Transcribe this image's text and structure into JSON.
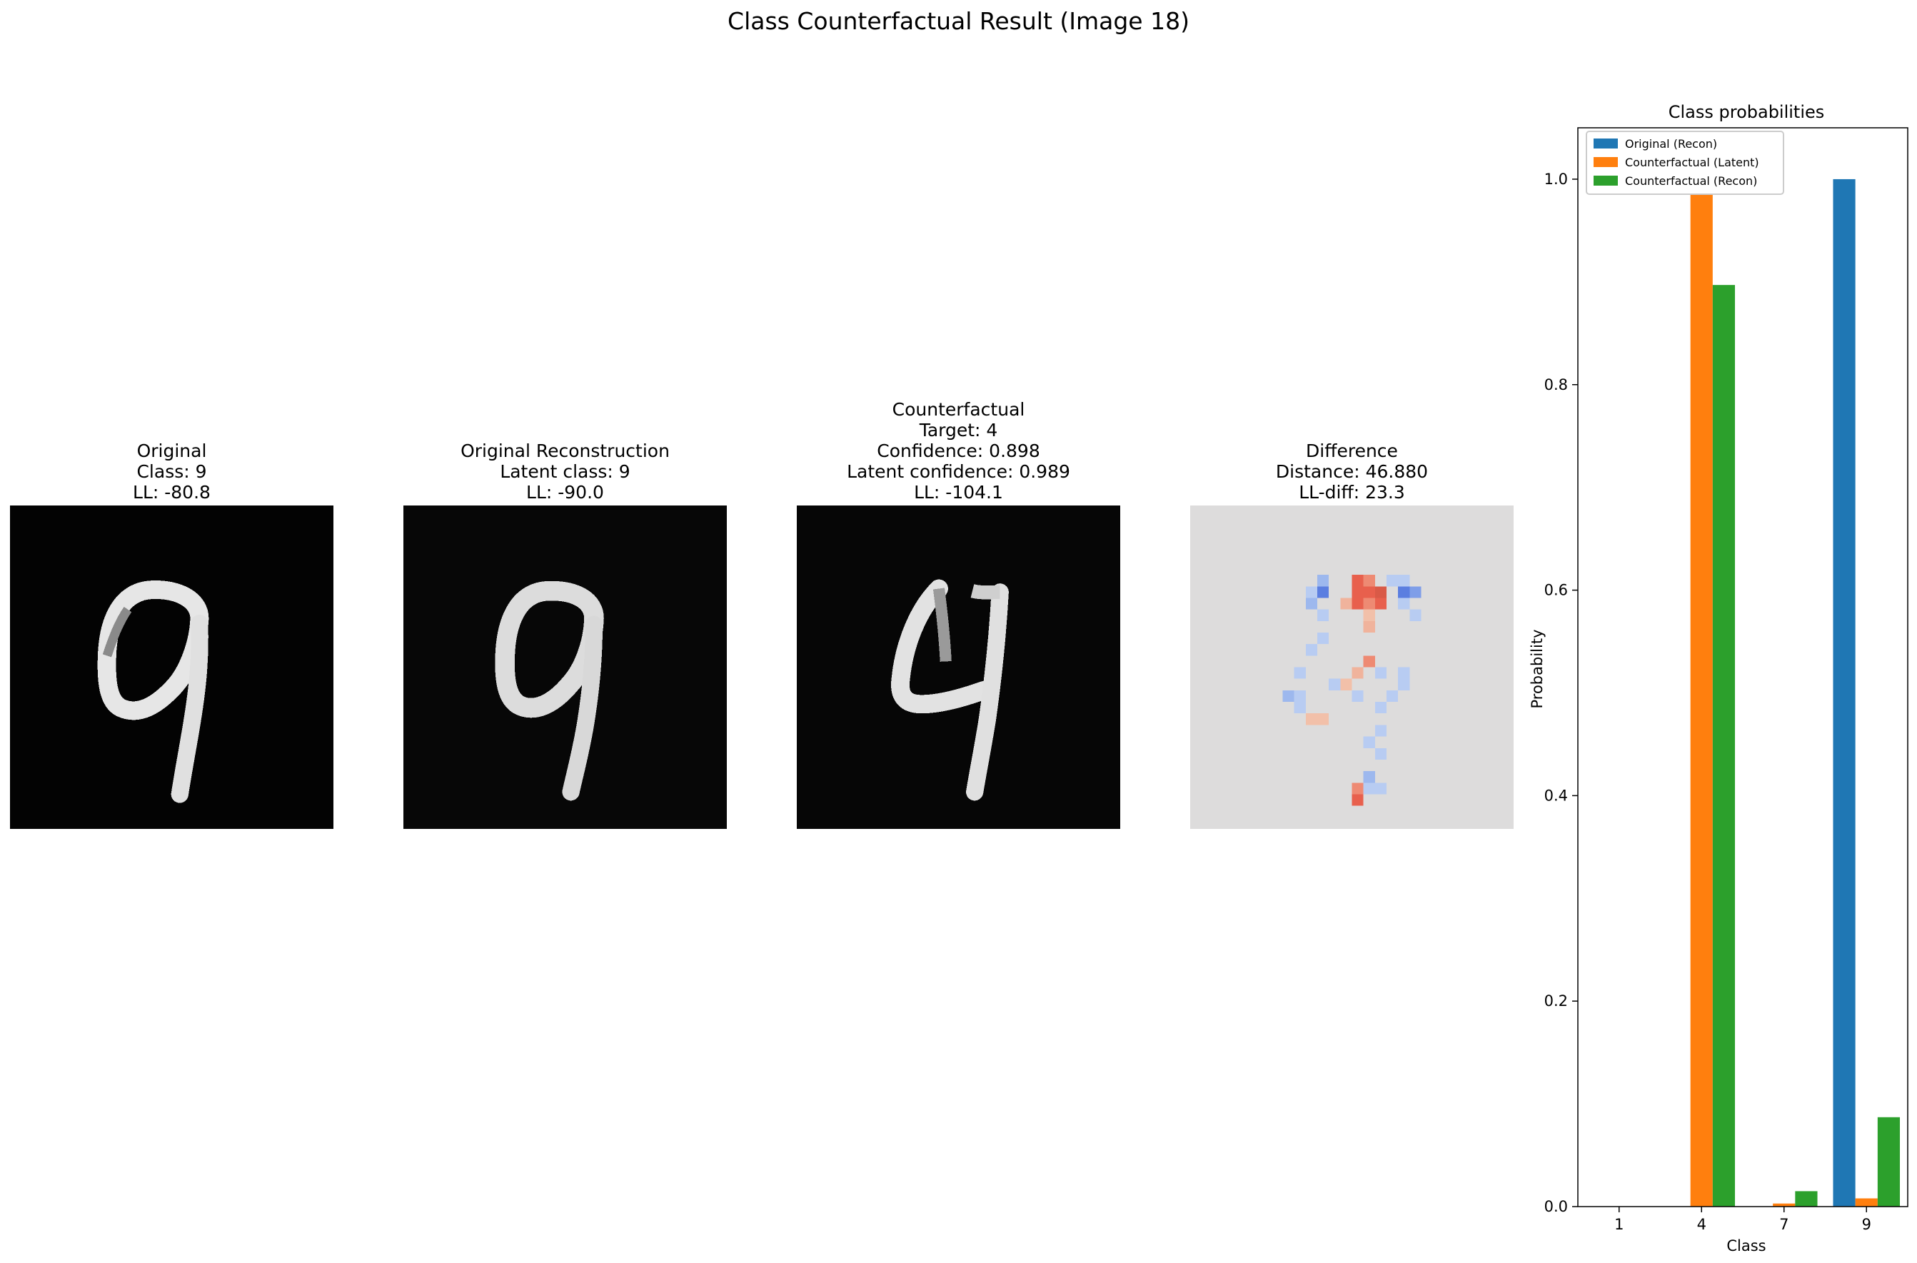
{
  "suptitle": "Class Counterfactual Result (Image 18)",
  "panels": [
    {
      "lines": [
        "Original",
        "Class: 9",
        "LL: -80.8"
      ]
    },
    {
      "lines": [
        "Original Reconstruction",
        "Latent class: 9",
        "LL: -90.0"
      ]
    },
    {
      "lines": [
        "Counterfactual",
        "Target: 4",
        "Confidence: 0.898",
        "Latent confidence: 0.989",
        "LL: -104.1"
      ]
    },
    {
      "lines": [
        "Difference",
        "Distance: 46.880",
        "LL-diff: 23.3"
      ]
    }
  ],
  "colors": {
    "original_recon": "#1f77b4",
    "cf_latent": "#ff7f0e",
    "cf_recon": "#2ca02c",
    "diff_bg": "#dddcdc",
    "diff_red": "#e8604d",
    "diff_blue": "#5b7ee0"
  },
  "chart_data": {
    "type": "bar",
    "title": "Class probabilities",
    "xlabel": "Class",
    "ylabel": "Probability",
    "categories": [
      "1",
      "4",
      "7",
      "9"
    ],
    "ylim": [
      0,
      1.05
    ],
    "yticks": [
      "0.0",
      "0.2",
      "0.4",
      "0.6",
      "0.8",
      "1.0"
    ],
    "legend_position": "top-left",
    "series": [
      {
        "name": "Original (Recon)",
        "values": [
          0.0,
          0.0,
          0.0,
          1.0
        ]
      },
      {
        "name": "Counterfactual (Latent)",
        "values": [
          0.0,
          0.989,
          0.003,
          0.008
        ]
      },
      {
        "name": "Counterfactual (Recon)",
        "values": [
          0.0,
          0.897,
          0.015,
          0.087
        ]
      }
    ]
  }
}
